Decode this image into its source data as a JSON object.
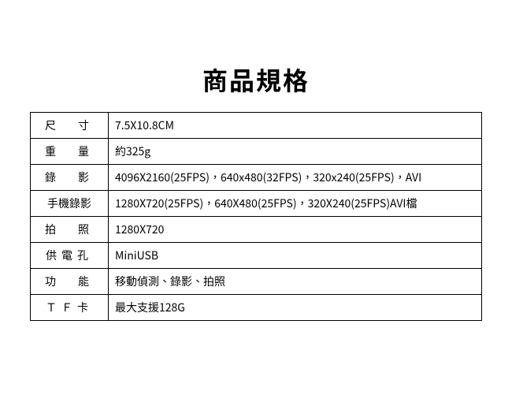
{
  "title": "商品規格",
  "table": {
    "border_color": "#000000",
    "background_color": "#ffffff",
    "text_color": "#000000",
    "label_fontsize": 14,
    "value_fontsize": 14,
    "title_fontsize": 32,
    "rows": [
      {
        "label": "尺寸",
        "value": " 7.5X10.8CM"
      },
      {
        "label": "重量",
        "value": "約325g"
      },
      {
        "label": "錄影",
        "value": "4096X2160(25FPS)，640x480(32FPS)，320x240(25FPS)，AVI"
      },
      {
        "label": "手機錄影",
        "value": "1280X720(25FPS)，640X480(25FPS)，320X240(25FPS)AVI檔"
      },
      {
        "label": "拍照",
        "value": "1280X720"
      },
      {
        "label": "供電孔",
        "value": " MiniUSB"
      },
      {
        "label": "功能",
        "value": "移動偵測、錄影、拍照"
      },
      {
        "label": "ＴＦ卡",
        "value": " 最大支援128G"
      }
    ]
  }
}
